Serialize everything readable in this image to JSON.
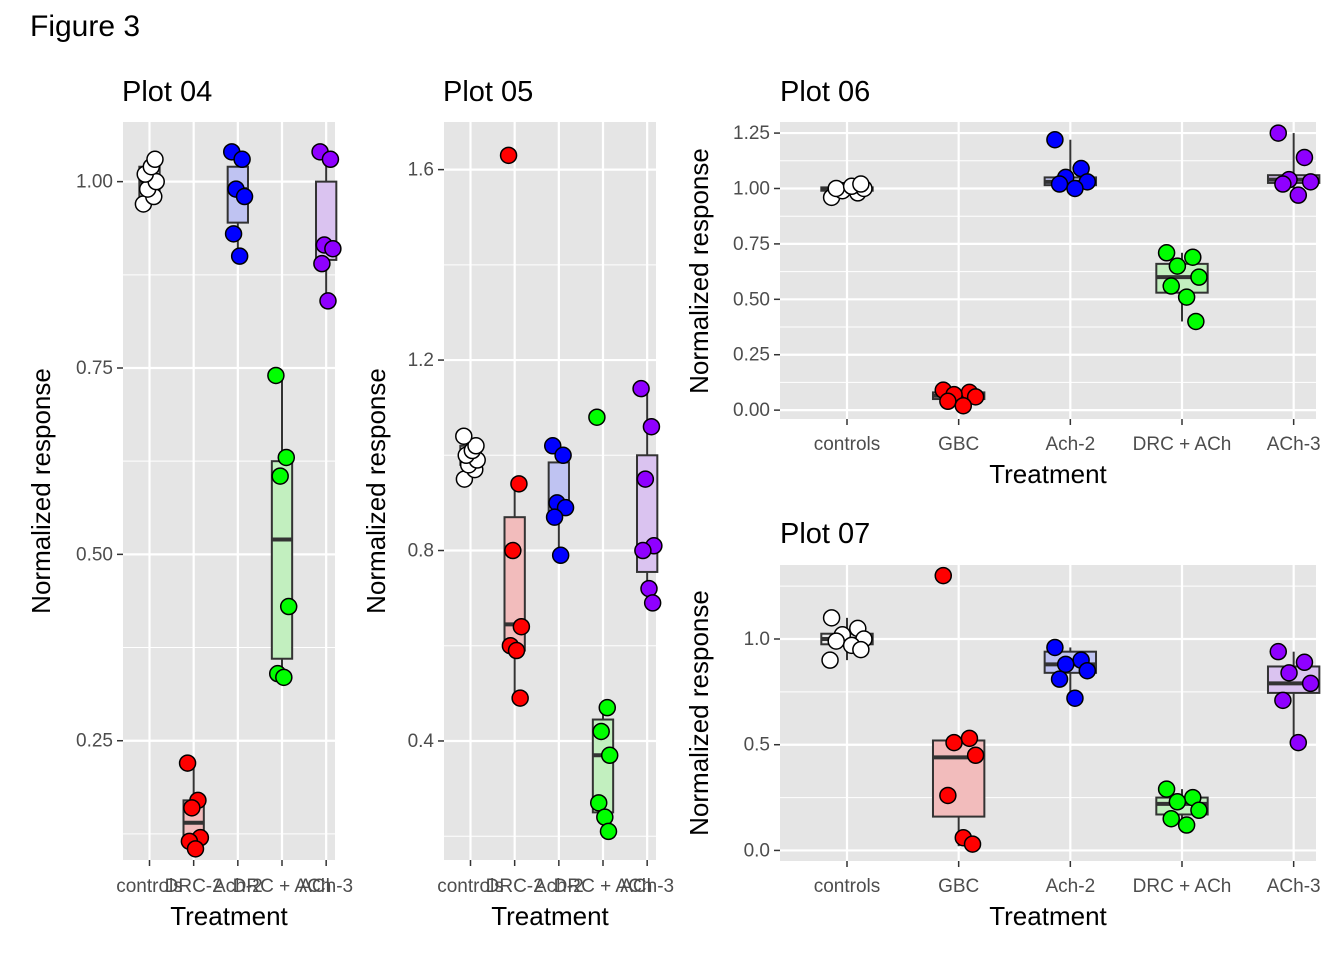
{
  "figure_title": "Figure 3",
  "colors": {
    "panel": "#e5e5e5",
    "grid": "#ffffff",
    "point_stroke": "#000000",
    "box_stroke": "#333333",
    "controls": "#ffffff",
    "red": "#ff0000",
    "blue": "#0000ff",
    "green": "#00ff00",
    "purple": "#8f00ff",
    "box_fill_controls": "#e8e8e8",
    "box_fill_red": "#f2bcbc",
    "box_fill_blue": "#bfc3f2",
    "box_fill_green": "#c2efbf",
    "box_fill_purple": "#dac3f0"
  },
  "chart_data": [
    {
      "type": "box",
      "title": "Plot 04",
      "xlabel": "Treatment",
      "ylabel": "Normalized response",
      "categories": [
        "controls",
        "DRC-2",
        "Ach-2",
        "DRC + ACh",
        "ACh-3"
      ],
      "ylim": [
        0.09,
        1.08
      ],
      "yticks": [
        0.25,
        0.5,
        0.75,
        1.0
      ],
      "ytick_labels": [
        "0.25",
        "0.50",
        "0.75",
        "1.00"
      ],
      "series": [
        {
          "color": "controls",
          "box": [
            0.98,
            1.0,
            1.02
          ],
          "whisker": [
            0.97,
            1.03
          ],
          "points": [
            0.97,
            0.98,
            0.99,
            1.0,
            1.01,
            1.02,
            1.03
          ]
        },
        {
          "color": "red",
          "box": [
            0.117,
            0.14,
            0.17
          ],
          "whisker": [
            0.1,
            0.22
          ],
          "points": [
            0.22,
            0.17,
            0.16,
            0.12,
            0.115,
            0.105
          ]
        },
        {
          "color": "blue",
          "box": [
            0.945,
            0.99,
            1.02
          ],
          "whisker": [
            0.9,
            1.04
          ],
          "points": [
            1.04,
            1.03,
            0.99,
            0.98,
            0.93,
            0.9
          ]
        },
        {
          "color": "green",
          "box": [
            0.36,
            0.52,
            0.625
          ],
          "whisker": [
            0.335,
            0.74
          ],
          "points": [
            0.74,
            0.63,
            0.605,
            0.43,
            0.34,
            0.335
          ]
        },
        {
          "color": "purple",
          "box": [
            0.895,
            0.915,
            1.0
          ],
          "whisker": [
            0.84,
            1.04
          ],
          "points": [
            1.04,
            1.03,
            0.915,
            0.91,
            0.89,
            0.84
          ]
        }
      ]
    },
    {
      "type": "box",
      "title": "Plot 05",
      "xlabel": "Treatment",
      "ylabel": "Normalized response",
      "categories": [
        "controls",
        "DRC-2",
        "Ach-2",
        "DRC + ACh",
        "ACh-3"
      ],
      "ylim": [
        0.15,
        1.7
      ],
      "yticks": [
        0.4,
        0.8,
        1.2,
        1.6
      ],
      "ytick_labels": [
        "0.4",
        "0.8",
        "1.2",
        "1.6"
      ],
      "series": [
        {
          "color": "controls",
          "box": [
            0.98,
            1.0,
            1.02
          ],
          "whisker": [
            0.95,
            1.04
          ],
          "points": [
            0.95,
            0.97,
            0.98,
            0.99,
            1.0,
            1.01,
            1.02,
            1.04
          ]
        },
        {
          "color": "red",
          "box": [
            0.59,
            0.645,
            0.87
          ],
          "whisker": [
            0.49,
            0.94
          ],
          "points": [
            1.63,
            0.94,
            0.8,
            0.64,
            0.6,
            0.59,
            0.49
          ]
        },
        {
          "color": "blue",
          "box": [
            0.88,
            0.9,
            0.985
          ],
          "whisker": [
            0.79,
            1.02
          ],
          "points": [
            1.02,
            1.0,
            0.9,
            0.89,
            0.87,
            0.79
          ]
        },
        {
          "color": "green",
          "box": [
            0.25,
            0.37,
            0.445
          ],
          "whisker": [
            0.21,
            0.47
          ],
          "points": [
            1.08,
            0.47,
            0.42,
            0.37,
            0.27,
            0.24,
            0.21
          ]
        },
        {
          "color": "purple",
          "box": [
            0.755,
            0.8,
            1.0
          ],
          "whisker": [
            0.69,
            1.14
          ],
          "points": [
            1.14,
            1.06,
            0.95,
            0.81,
            0.8,
            0.72,
            0.69
          ]
        }
      ]
    },
    {
      "type": "box",
      "title": "Plot 06",
      "xlabel": "Treatment",
      "ylabel": "Normalized response",
      "categories": [
        "controls",
        "GBC",
        "Ach-2",
        "DRC + ACh",
        "ACh-3"
      ],
      "ylim": [
        -0.04,
        1.3
      ],
      "yticks": [
        0.0,
        0.25,
        0.5,
        0.75,
        1.0,
        1.25
      ],
      "ytick_labels": [
        "0.00",
        "0.25",
        "0.50",
        "0.75",
        "1.00",
        "1.25"
      ],
      "series": [
        {
          "color": "controls",
          "box": [
            0.99,
            1.0,
            1.005
          ],
          "whisker": [
            0.96,
            1.02
          ],
          "points": [
            0.96,
            0.98,
            0.99,
            1.0,
            1.0,
            1.01,
            1.02
          ]
        },
        {
          "color": "red",
          "box": [
            0.05,
            0.065,
            0.08
          ],
          "whisker": [
            0.02,
            0.09
          ],
          "points": [
            0.09,
            0.08,
            0.07,
            0.06,
            0.04,
            0.02
          ]
        },
        {
          "color": "blue",
          "box": [
            1.015,
            1.03,
            1.05
          ],
          "whisker": [
            0.995,
            1.22
          ],
          "points": [
            1.22,
            1.09,
            1.05,
            1.03,
            1.02,
            1.0
          ]
        },
        {
          "color": "green",
          "box": [
            0.53,
            0.6,
            0.66
          ],
          "whisker": [
            0.4,
            0.71
          ],
          "points": [
            0.71,
            0.69,
            0.65,
            0.6,
            0.56,
            0.51,
            0.4
          ]
        },
        {
          "color": "purple",
          "box": [
            1.025,
            1.04,
            1.06
          ],
          "whisker": [
            0.97,
            1.25
          ],
          "points": [
            1.25,
            1.14,
            1.04,
            1.03,
            1.02,
            0.97
          ]
        }
      ]
    },
    {
      "type": "box",
      "title": "Plot 07",
      "xlabel": "Treatment",
      "ylabel": "Normalized response",
      "categories": [
        "controls",
        "GBC",
        "Ach-2",
        "DRC + ACh",
        "ACh-3"
      ],
      "ylim": [
        -0.05,
        1.35
      ],
      "yticks": [
        0.0,
        0.5,
        1.0
      ],
      "ytick_labels": [
        "0.0",
        "0.5",
        "1.0"
      ],
      "series": [
        {
          "color": "controls",
          "box": [
            0.975,
            1.0,
            1.025
          ],
          "whisker": [
            0.9,
            1.1
          ],
          "points": [
            1.1,
            1.05,
            1.02,
            1.0,
            0.99,
            0.97,
            0.95,
            0.9
          ]
        },
        {
          "color": "red",
          "box": [
            0.16,
            0.44,
            0.52
          ],
          "whisker": [
            0.02,
            0.52
          ],
          "points": [
            1.3,
            0.53,
            0.51,
            0.45,
            0.26,
            0.06,
            0.03
          ]
        },
        {
          "color": "blue",
          "box": [
            0.84,
            0.88,
            0.94
          ],
          "whisker": [
            0.72,
            0.96
          ],
          "points": [
            0.96,
            0.9,
            0.88,
            0.85,
            0.81,
            0.72
          ]
        },
        {
          "color": "green",
          "box": [
            0.17,
            0.22,
            0.25
          ],
          "whisker": [
            0.12,
            0.29
          ],
          "points": [
            0.29,
            0.25,
            0.23,
            0.19,
            0.15,
            0.12
          ]
        },
        {
          "color": "purple",
          "box": [
            0.745,
            0.79,
            0.87
          ],
          "whisker": [
            0.51,
            0.94
          ],
          "points": [
            0.94,
            0.89,
            0.84,
            0.79,
            0.71,
            0.51
          ]
        }
      ]
    }
  ]
}
